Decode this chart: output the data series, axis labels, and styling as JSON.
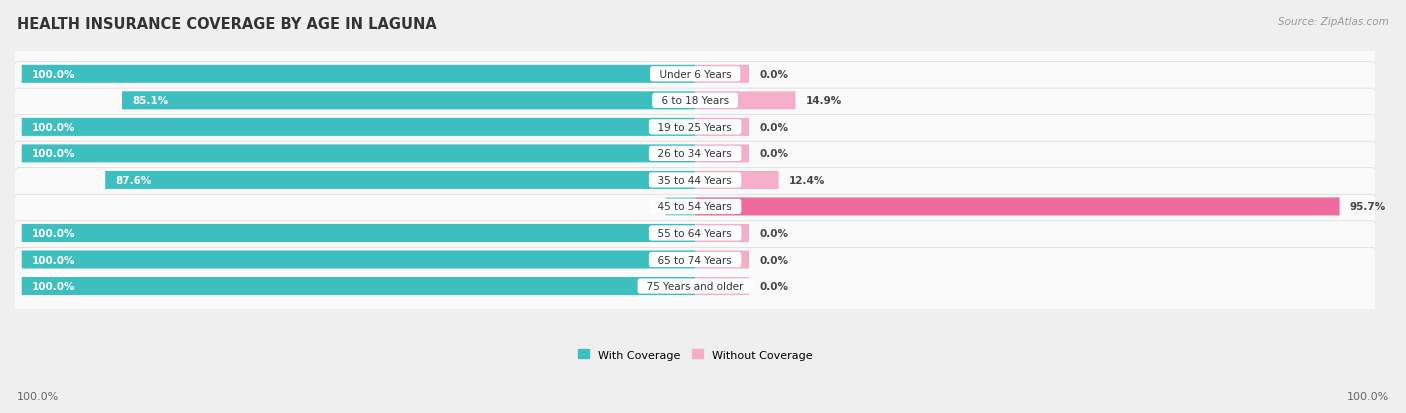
{
  "title": "HEALTH INSURANCE COVERAGE BY AGE IN LAGUNA",
  "source": "Source: ZipAtlas.com",
  "categories": [
    "Under 6 Years",
    "6 to 18 Years",
    "19 to 25 Years",
    "26 to 34 Years",
    "35 to 44 Years",
    "45 to 54 Years",
    "55 to 64 Years",
    "65 to 74 Years",
    "75 Years and older"
  ],
  "with_coverage": [
    100.0,
    85.1,
    100.0,
    100.0,
    87.6,
    4.4,
    100.0,
    100.0,
    100.0
  ],
  "without_coverage": [
    0.0,
    14.9,
    0.0,
    0.0,
    12.4,
    95.7,
    0.0,
    0.0,
    0.0
  ],
  "coverage_color": "#3DBFBF",
  "coverage_color_light": "#7DD4D4",
  "no_coverage_color": "#EE6B9E",
  "no_coverage_color_light": "#F4AECA",
  "bg_color": "#EFEFEF",
  "row_bg": "#FAFAFA",
  "row_separator": "#E0E0E0",
  "label_color_white": "#FFFFFF",
  "label_color_dark": "#444444",
  "title_fontsize": 10.5,
  "source_fontsize": 7.5,
  "bar_label_fontsize": 7.5,
  "category_fontsize": 7.5,
  "legend_fontsize": 8,
  "axis_label_fontsize": 8,
  "bottom_labels": [
    "100.0%",
    "100.0%"
  ]
}
